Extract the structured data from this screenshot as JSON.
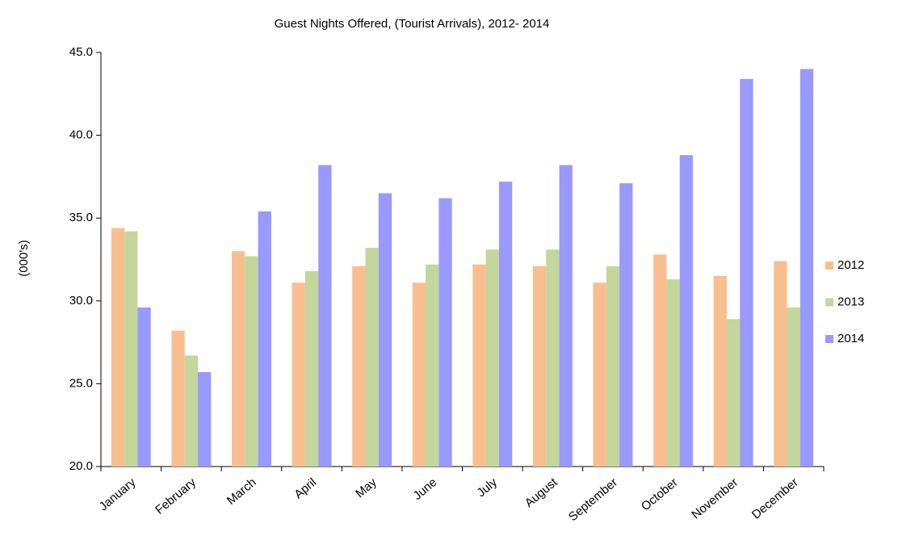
{
  "chart_data": {
    "type": "bar",
    "title": "Guest Nights Offered, (Tourist Arrivals), 2012- 2014",
    "y_label": "(000's)",
    "categories": [
      "January",
      "February",
      "March",
      "April",
      "May",
      "June",
      "July",
      "August",
      "September",
      "October",
      "November",
      "December"
    ],
    "series": [
      {
        "name": "2012",
        "color": "#f9be8f",
        "values": [
          34.4,
          28.2,
          33.0,
          31.1,
          32.1,
          31.1,
          32.2,
          32.1,
          31.1,
          32.8,
          31.5,
          32.4
        ]
      },
      {
        "name": "2013",
        "color": "#c3d69b",
        "values": [
          34.2,
          26.7,
          32.7,
          31.8,
          33.2,
          32.2,
          33.1,
          33.1,
          32.1,
          31.3,
          28.9,
          29.6
        ]
      },
      {
        "name": "2014",
        "color": "#9999ff",
        "values": [
          29.6,
          25.7,
          35.4,
          38.2,
          36.5,
          36.2,
          37.2,
          38.2,
          37.1,
          38.8,
          43.4,
          44.0
        ]
      }
    ],
    "ylim": [
      20,
      45
    ],
    "yticks": [
      {
        "value": 20,
        "label": "20.0"
      },
      {
        "value": 25,
        "label": "25.0"
      },
      {
        "value": 30,
        "label": "30.0"
      },
      {
        "value": 35,
        "label": "35.0"
      },
      {
        "value": 40,
        "label": "40.0"
      },
      {
        "value": 45,
        "label": "45.0"
      }
    ],
    "legend": "right"
  }
}
